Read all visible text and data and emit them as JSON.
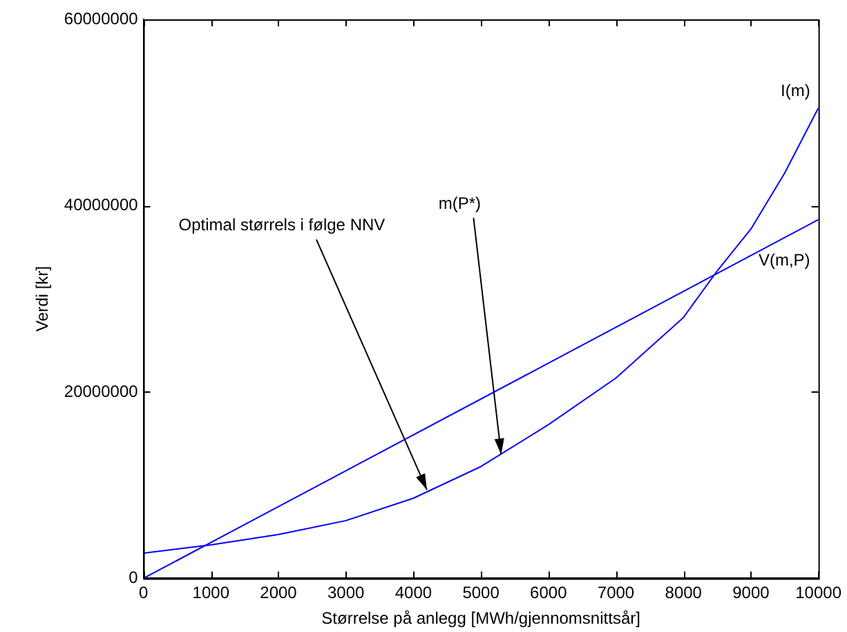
{
  "chart_data": {
    "type": "line",
    "xlabel": "Størrelse på anlegg [MWh/gjennomsnittsår]",
    "ylabel": "Verdi [kr]",
    "x": [
      0,
      1000,
      2000,
      3000,
      4000,
      5000,
      6000,
      7000,
      8000,
      8500,
      9000,
      9500,
      10000
    ],
    "series": [
      {
        "name": "I(m)",
        "color": "#0000ff",
        "values": [
          2700000,
          3600000,
          4700000,
          6200000,
          8600000,
          12000000,
          16500000,
          21500000,
          28000000,
          33000000,
          37500000,
          43500000,
          50500000
        ]
      },
      {
        "name": "V(m,P)",
        "color": "#0000ff",
        "x": [
          0,
          10000
        ],
        "values": [
          0,
          38500000
        ]
      }
    ],
    "xlim": [
      0,
      10000
    ],
    "xticks": [
      0,
      1000,
      2000,
      3000,
      4000,
      5000,
      6000,
      7000,
      8000,
      9000,
      10000
    ],
    "ylim": [
      0,
      60000000
    ],
    "yticks": [
      0,
      20000000,
      40000000,
      60000000
    ],
    "grid": false,
    "legend": false,
    "marker": "none",
    "line_style": "solid",
    "annotations": [
      {
        "text": "Optimal størrels i følge NNV",
        "x": 4200,
        "y": 9500000
      },
      {
        "text": "m(P*)",
        "x": 5300,
        "y": 13300000
      }
    ]
  }
}
